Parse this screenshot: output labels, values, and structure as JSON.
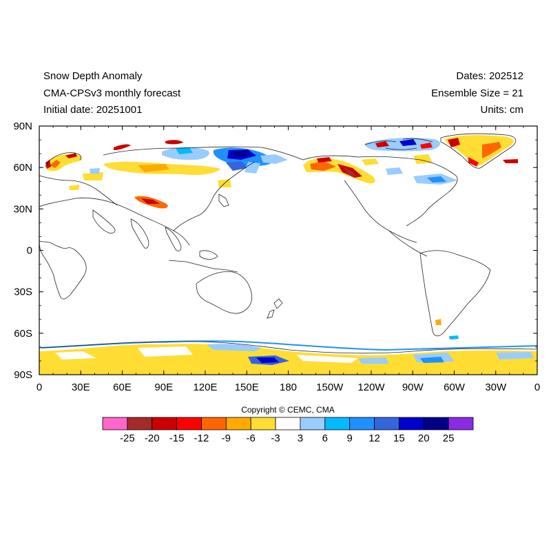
{
  "header": {
    "title": "Snow Depth Anomaly",
    "model": "CMA-CPSv3 monthly forecast",
    "initial_date": "Initial date: 20251001",
    "dates": "Dates: 202512",
    "ensemble": "Ensemble Size = 21",
    "units": "Units: cm"
  },
  "axes": {
    "lat_labels": [
      "90N",
      "60N",
      "30N",
      "0",
      "30S",
      "60S",
      "90S"
    ],
    "lon_labels": [
      "0",
      "30E",
      "60E",
      "90E",
      "120E",
      "150E",
      "180",
      "150W",
      "120W",
      "90W",
      "60W",
      "30W",
      "0"
    ]
  },
  "colorbar": {
    "labels": [
      "-25",
      "-20",
      "-15",
      "-12",
      "-9",
      "-6",
      "-3",
      "3",
      "6",
      "9",
      "12",
      "15",
      "20",
      "25"
    ],
    "colors": [
      "#ff66cc",
      "#a52a2a",
      "#cc0000",
      "#ff0000",
      "#ff6600",
      "#ffaa00",
      "#ffdd33",
      "#ffffff",
      "#99ccff",
      "#00bbff",
      "#1e90ff",
      "#3366dd",
      "#0000cc",
      "#000088",
      "#8a2be2"
    ]
  },
  "copyright": "Copyright © CEMC, CMA"
}
